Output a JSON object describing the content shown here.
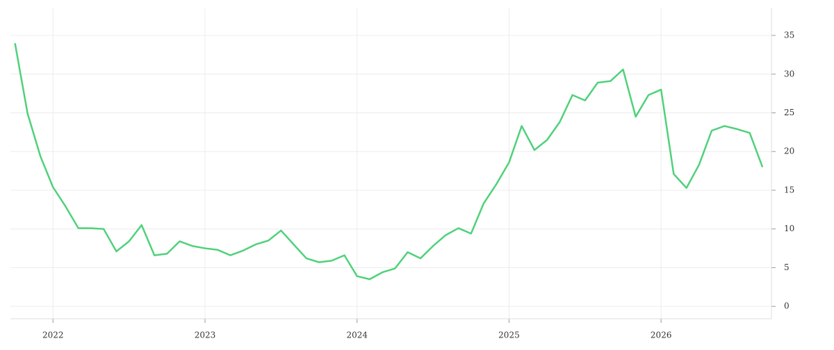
{
  "chart_data": {
    "type": "line",
    "x": [
      2021.75,
      2021.833,
      2021.917,
      2022,
      2022.083,
      2022.167,
      2022.25,
      2022.333,
      2022.417,
      2022.5,
      2022.583,
      2022.667,
      2022.75,
      2022.833,
      2022.917,
      2023,
      2023.083,
      2023.167,
      2023.25,
      2023.333,
      2023.417,
      2023.5,
      2023.583,
      2023.667,
      2023.75,
      2023.833,
      2023.917,
      2024,
      2024.083,
      2024.167,
      2024.25,
      2024.333,
      2024.417,
      2024.5,
      2024.583,
      2024.667,
      2024.75,
      2024.833,
      2024.917,
      2025,
      2025.083,
      2025.167,
      2025.25,
      2025.333,
      2025.417,
      2025.5,
      2025.583,
      2025.667,
      2025.75,
      2025.833,
      2025.917,
      2026,
      2026.083,
      2026.167,
      2026.25,
      2026.333,
      2026.417,
      2026.5,
      2026.583,
      2026.667
    ],
    "series": [
      {
        "color": "#4fd17a",
        "values": [
          34.0,
          24.9,
          19.4,
          15.4,
          12.9,
          10.1,
          10.1,
          10.0,
          7.1,
          8.4,
          10.5,
          6.6,
          6.8,
          8.4,
          7.8,
          7.5,
          7.3,
          6.6,
          7.2,
          8.0,
          8.5,
          9.8,
          8.0,
          6.2,
          5.7,
          5.9,
          6.6,
          3.9,
          3.5,
          4.4,
          4.9,
          7.0,
          6.2,
          7.8,
          9.2,
          10.1,
          9.4,
          13.3,
          15.8,
          18.6,
          23.3,
          20.2,
          21.5,
          23.8,
          27.3,
          26.6,
          28.9,
          29.1,
          30.6,
          24.5,
          27.3,
          28.0,
          17.1,
          15.3,
          18.3,
          22.7,
          23.3,
          22.9,
          22.4,
          18.0
        ]
      }
    ],
    "xlim": [
      2021.72,
      2026.726
    ],
    "xticks": [
      2022,
      2023,
      2024,
      2025,
      2026
    ],
    "ylim": [
      -1.6,
      38.5
    ],
    "yticks": [
      0,
      5,
      10,
      15,
      20,
      25,
      30,
      35
    ],
    "grid": true
  }
}
